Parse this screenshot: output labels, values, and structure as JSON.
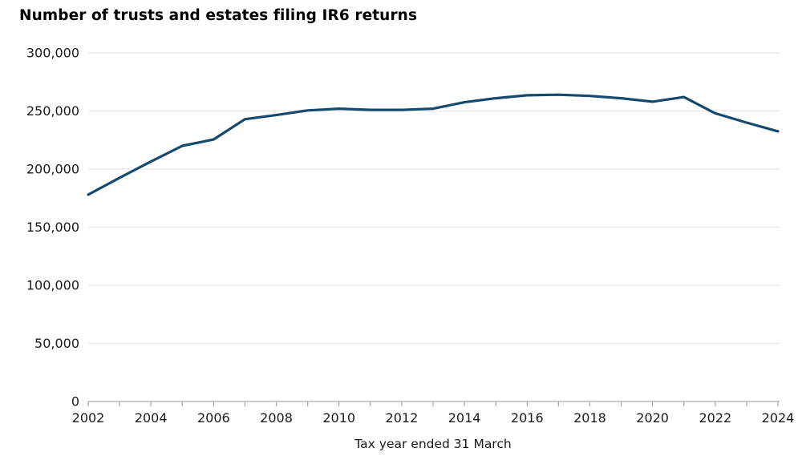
{
  "title": "Number of trusts and estates filing IR6 returns",
  "chart_data": {
    "type": "line",
    "title": "Number of trusts and estates filing IR6 returns",
    "xlabel": "Tax year ended 31 March",
    "ylabel": "",
    "x": [
      2002,
      2003,
      2004,
      2005,
      2006,
      2007,
      2008,
      2009,
      2010,
      2011,
      2012,
      2013,
      2014,
      2015,
      2016,
      2017,
      2018,
      2019,
      2020,
      2021,
      2022,
      2023,
      2024
    ],
    "values": [
      178000,
      192500,
      206500,
      220000,
      225500,
      243000,
      246500,
      250500,
      252000,
      251000,
      251000,
      252000,
      257500,
      261000,
      263500,
      264000,
      263000,
      261000,
      258000,
      262000,
      248000,
      240000,
      232500
    ],
    "ylim": [
      0,
      300000
    ],
    "y_tick_step": 50000,
    "y_tick_labels": [
      "0",
      "50,000",
      "100,000",
      "150,000",
      "200,000",
      "250,000",
      "300,000"
    ],
    "x_tick_labels": [
      "2002",
      "2004",
      "2006",
      "2008",
      "2010",
      "2012",
      "2014",
      "2016",
      "2018",
      "2020",
      "2022",
      "2024"
    ],
    "x_label_every_years": 2,
    "grid": true,
    "legend_position": "none",
    "line_color": "#134a6e",
    "grid_color": "#e7e7e7",
    "axis_color": "#ababab",
    "text_color": "#1a1a1a"
  }
}
